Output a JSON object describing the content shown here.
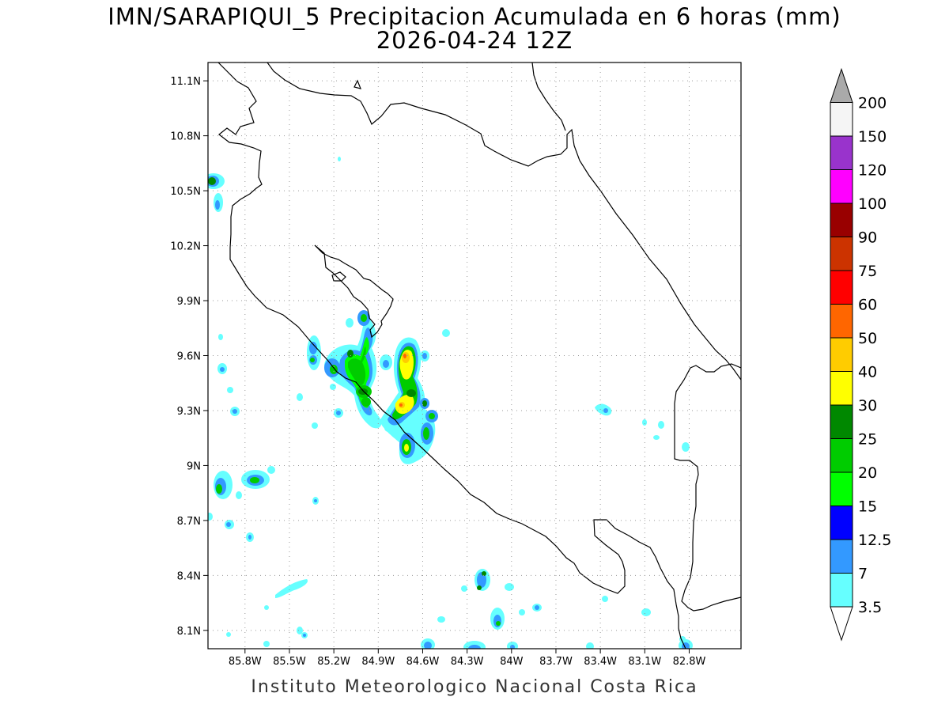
{
  "title": {
    "line1": "IMN/SARAPIQUI_5 Precipitacion Acumulada en 6 horas (mm)",
    "line2": "2026-04-24 12Z"
  },
  "footer": "Instituto Meteorologico Nacional Costa Rica",
  "map": {
    "lon_range": [
      -86.05,
      -82.45
    ],
    "lat_range": [
      8.0,
      11.2
    ],
    "lat_ticks": [
      "11.1N",
      "10.8N",
      "10.5N",
      "10.2N",
      "9.9N",
      "9.6N",
      "9.3N",
      "9N",
      "8.7N",
      "8.4N",
      "8.1N"
    ],
    "lat_tick_values": [
      11.1,
      10.8,
      10.5,
      10.2,
      9.9,
      9.6,
      9.3,
      9.0,
      8.7,
      8.4,
      8.1
    ],
    "lon_ticks": [
      "85.8W",
      "85.5W",
      "85.2W",
      "84.9W",
      "84.6W",
      "84.3W",
      "84W",
      "83.7W",
      "83.4W",
      "83.1W",
      "82.8W"
    ],
    "lon_tick_values": [
      -85.8,
      -85.5,
      -85.2,
      -84.9,
      -84.6,
      -84.3,
      -84.0,
      -83.7,
      -83.4,
      -83.1,
      -82.8
    ],
    "grid": "dotted"
  },
  "colorbar": {
    "labels": [
      "3.5",
      "7",
      "12.5",
      "15",
      "20",
      "25",
      "30",
      "40",
      "50",
      "60",
      "75",
      "90",
      "100",
      "120",
      "150",
      "200"
    ],
    "colors": [
      "#66ffff",
      "#3399ff",
      "#0000ff",
      "#00ff00",
      "#00cc00",
      "#008800",
      "#ffff00",
      "#ffcc00",
      "#ff6600",
      "#ff0000",
      "#cc3300",
      "#990000",
      "#ff00ff",
      "#9933cc",
      "#f5f5f5",
      "#aaaaaa"
    ]
  },
  "legend_colors": {
    "coastline": "#000000",
    "grid": "#999999"
  }
}
